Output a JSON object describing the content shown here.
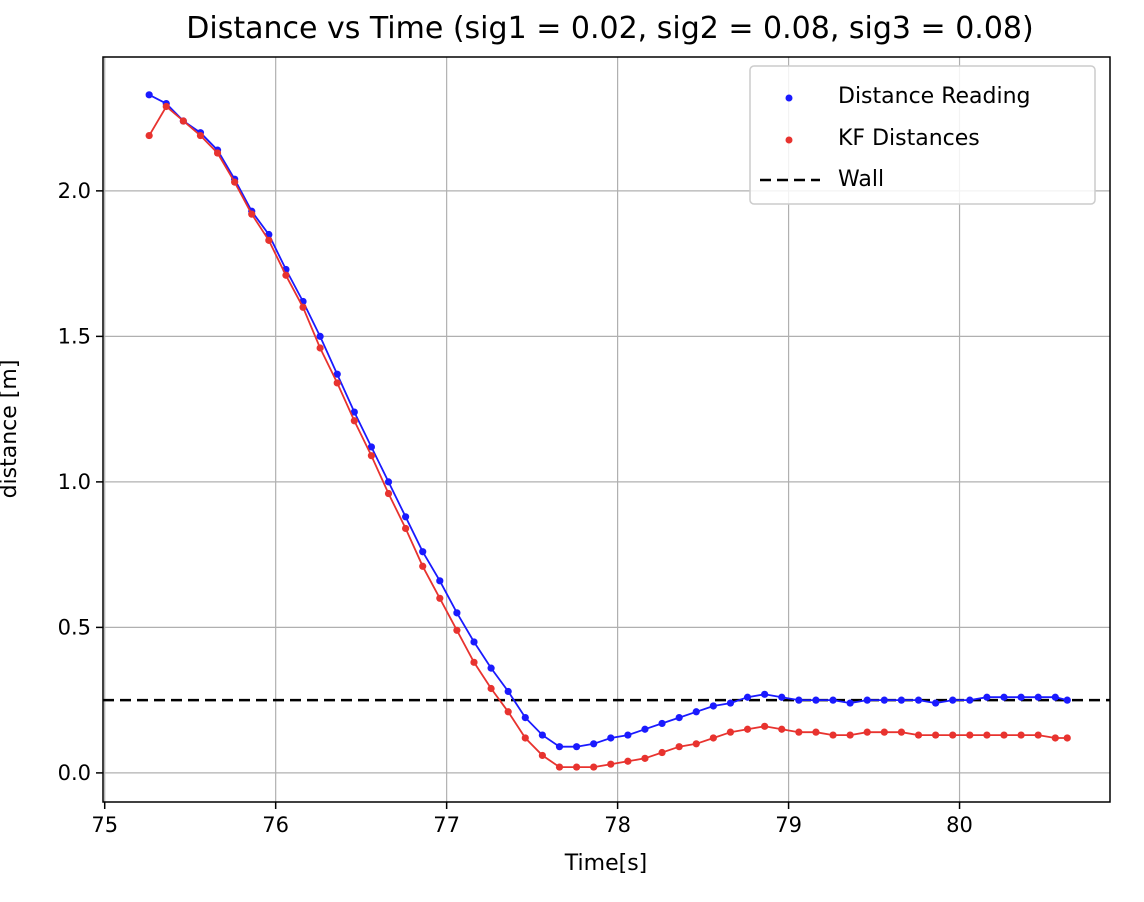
{
  "chart_data": {
    "type": "line",
    "title": "Distance vs Time (sig1 = 0.02, sig2 = 0.08, sig3 = 0.08)",
    "xlabel": "Time[s]",
    "ylabel": "distance [m]",
    "xlim": [
      74.99,
      80.88
    ],
    "ylim": [
      -0.1,
      2.46
    ],
    "xticks": [
      75,
      76,
      77,
      78,
      79,
      80
    ],
    "yticks": [
      0.0,
      0.5,
      1.0,
      1.5,
      2.0
    ],
    "xtick_labels": [
      "75",
      "76",
      "77",
      "78",
      "79",
      "80"
    ],
    "ytick_labels": [
      "0.0",
      "0.5",
      "1.0",
      "1.5",
      "2.0"
    ],
    "grid": true,
    "legend_position": "top-right",
    "wall": {
      "name": "Wall",
      "value": 0.25,
      "color": "#000000",
      "style": "dashed"
    },
    "series": [
      {
        "name": "Distance Reading",
        "color": "#1a1aff",
        "x": [
          75.26,
          75.36,
          75.46,
          75.56,
          75.66,
          75.76,
          75.86,
          75.96,
          76.06,
          76.16,
          76.26,
          76.36,
          76.46,
          76.56,
          76.66,
          76.76,
          76.86,
          76.96,
          77.06,
          77.16,
          77.26,
          77.36,
          77.46,
          77.56,
          77.66,
          77.76,
          77.86,
          77.96,
          78.06,
          78.16,
          78.26,
          78.36,
          78.46,
          78.56,
          78.66,
          78.76,
          78.86,
          78.96,
          79.06,
          79.16,
          79.26,
          79.36,
          79.46,
          79.56,
          79.66,
          79.76,
          79.86,
          79.96,
          80.06,
          80.16,
          80.26,
          80.36,
          80.46,
          80.56,
          80.63
        ],
        "y": [
          2.33,
          2.3,
          2.24,
          2.2,
          2.14,
          2.04,
          1.93,
          1.85,
          1.73,
          1.62,
          1.5,
          1.37,
          1.24,
          1.12,
          1.0,
          0.88,
          0.76,
          0.66,
          0.55,
          0.45,
          0.36,
          0.28,
          0.19,
          0.13,
          0.09,
          0.09,
          0.1,
          0.12,
          0.13,
          0.15,
          0.17,
          0.19,
          0.21,
          0.23,
          0.24,
          0.26,
          0.27,
          0.26,
          0.25,
          0.25,
          0.25,
          0.24,
          0.25,
          0.25,
          0.25,
          0.25,
          0.24,
          0.25,
          0.25,
          0.26,
          0.26,
          0.26,
          0.26,
          0.26,
          0.25
        ]
      },
      {
        "name": "KF Distances",
        "color": "#e8332f",
        "x": [
          75.26,
          75.36,
          75.46,
          75.56,
          75.66,
          75.76,
          75.86,
          75.96,
          76.06,
          76.16,
          76.26,
          76.36,
          76.46,
          76.56,
          76.66,
          76.76,
          76.86,
          76.96,
          77.06,
          77.16,
          77.26,
          77.36,
          77.46,
          77.56,
          77.66,
          77.76,
          77.86,
          77.96,
          78.06,
          78.16,
          78.26,
          78.36,
          78.46,
          78.56,
          78.66,
          78.76,
          78.86,
          78.96,
          79.06,
          79.16,
          79.26,
          79.36,
          79.46,
          79.56,
          79.66,
          79.76,
          79.86,
          79.96,
          80.06,
          80.16,
          80.26,
          80.36,
          80.46,
          80.56,
          80.63
        ],
        "y": [
          2.19,
          2.29,
          2.24,
          2.19,
          2.13,
          2.03,
          1.92,
          1.83,
          1.71,
          1.6,
          1.46,
          1.34,
          1.21,
          1.09,
          0.96,
          0.84,
          0.71,
          0.6,
          0.49,
          0.38,
          0.29,
          0.21,
          0.12,
          0.06,
          0.02,
          0.02,
          0.02,
          0.03,
          0.04,
          0.05,
          0.07,
          0.09,
          0.1,
          0.12,
          0.14,
          0.15,
          0.16,
          0.15,
          0.14,
          0.14,
          0.13,
          0.13,
          0.14,
          0.14,
          0.14,
          0.13,
          0.13,
          0.13,
          0.13,
          0.13,
          0.13,
          0.13,
          0.13,
          0.12,
          0.12
        ]
      }
    ]
  }
}
